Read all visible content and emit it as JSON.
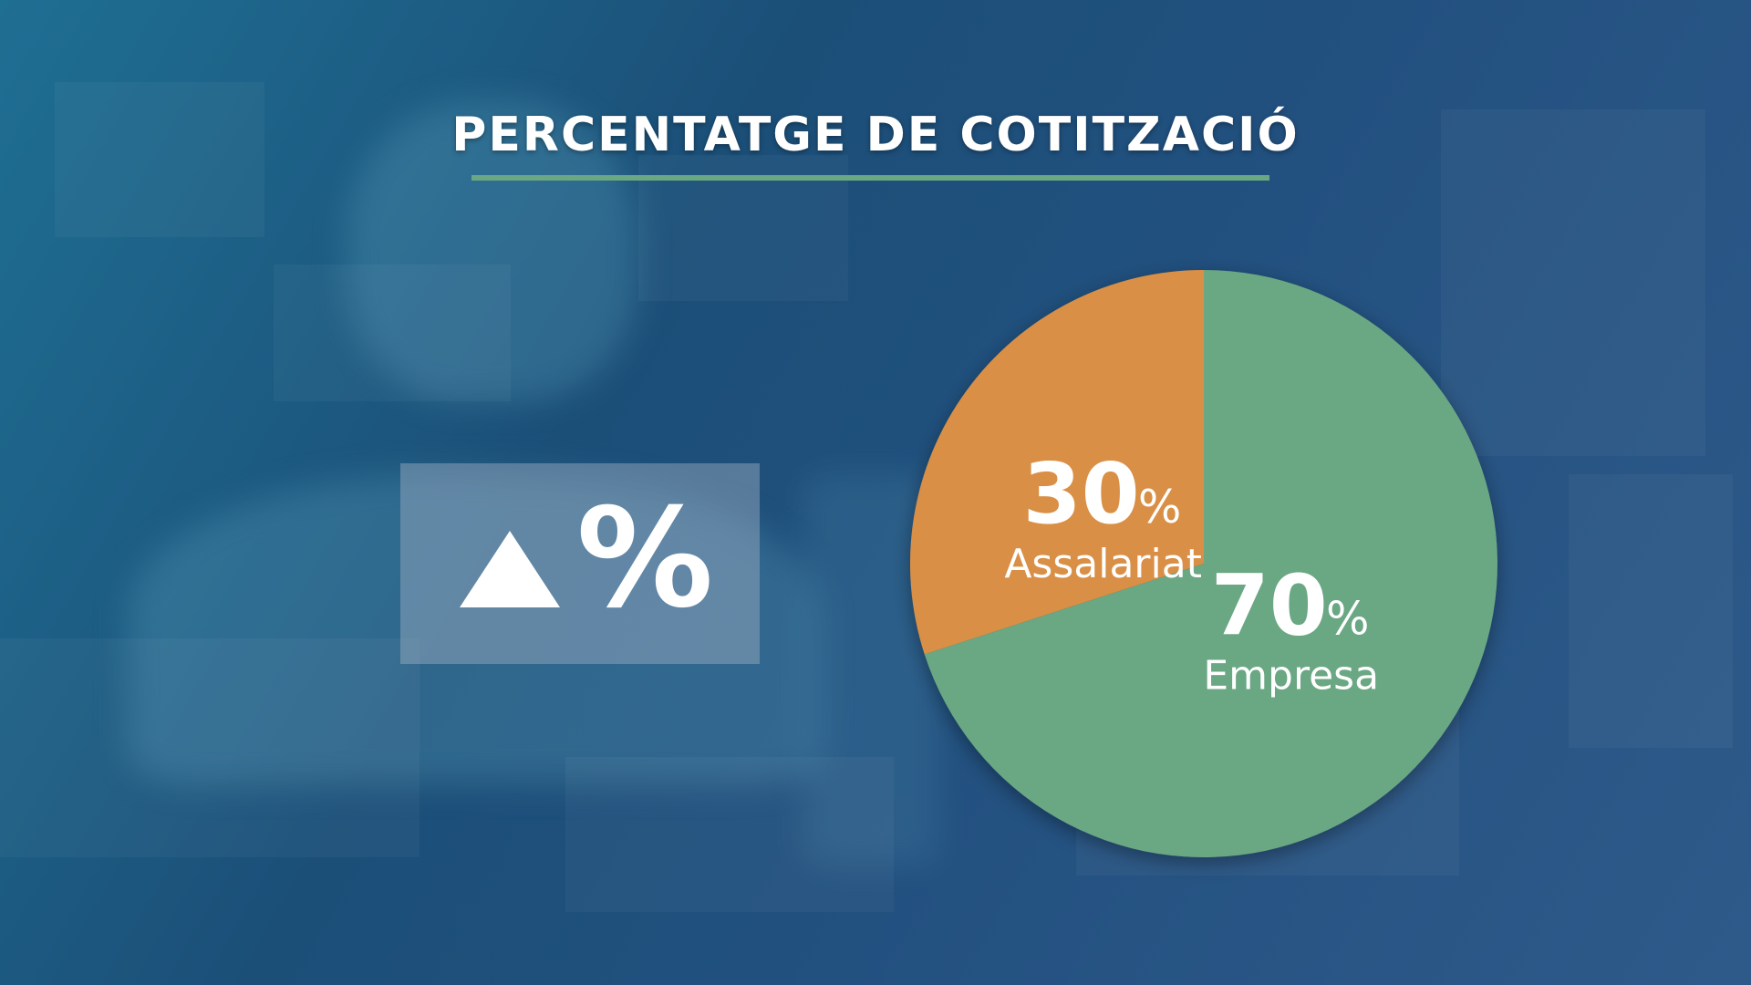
{
  "title": "PERCENTATGE DE COTITZACIÓ",
  "increase_box": {
    "icon": "up-triangle-icon",
    "symbol": "%"
  },
  "colors": {
    "assalariat": "#d98f45",
    "empresa": "#6aa783",
    "underline": "#6aa783",
    "text": "#ffffff"
  },
  "chart_data": {
    "type": "pie",
    "title": "PERCENTATGE DE COTITZACIÓ",
    "unit": "%",
    "slices": [
      {
        "label": "Assalariat",
        "value": 30,
        "value_text": "30",
        "color": "#d98f45"
      },
      {
        "label": "Empresa",
        "value": 70,
        "value_text": "70",
        "color": "#6aa783"
      }
    ]
  }
}
